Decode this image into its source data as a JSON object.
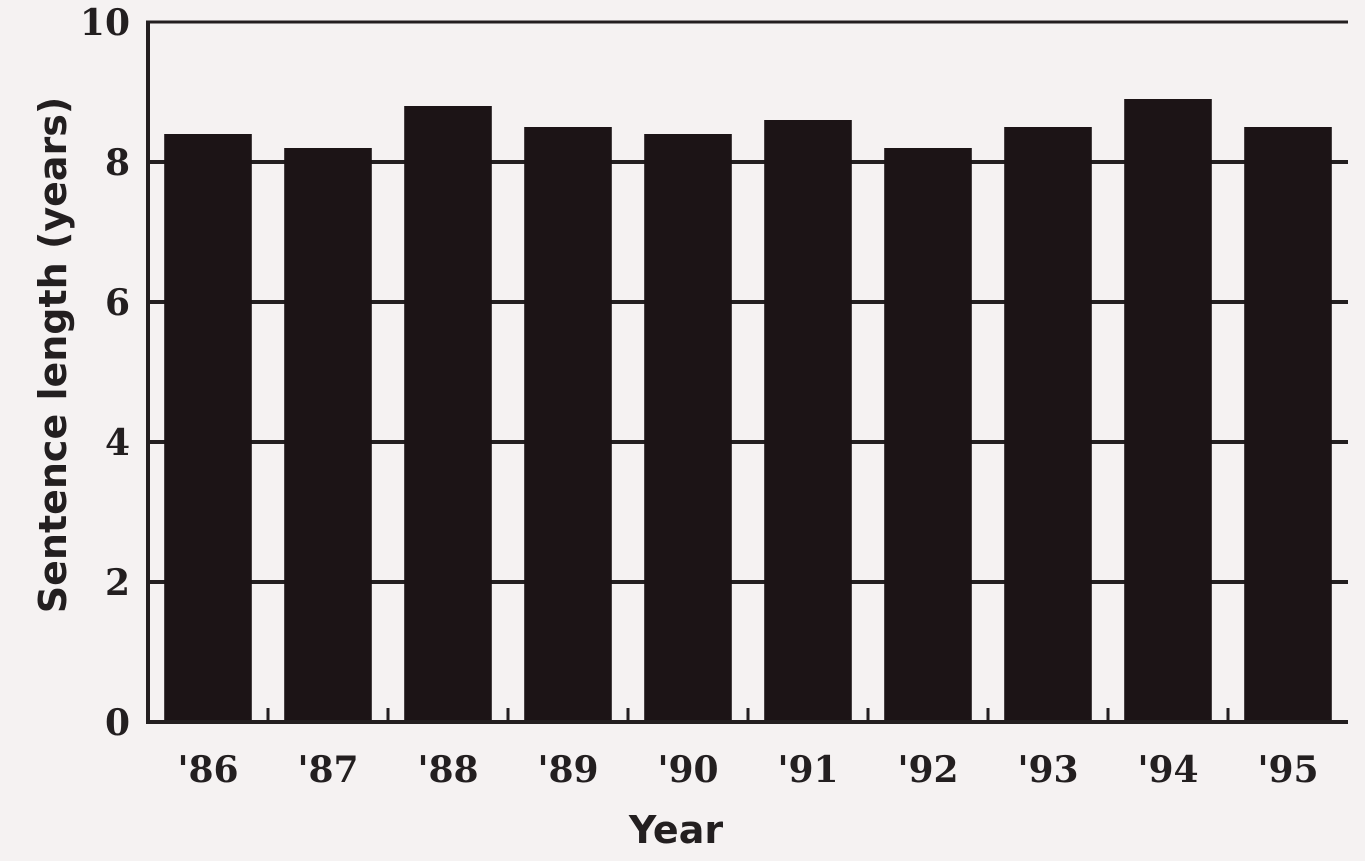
{
  "chart_data": {
    "type": "bar",
    "categories": [
      "'86",
      "'87",
      "'88",
      "'89",
      "'90",
      "'91",
      "'92",
      "'93",
      "'94",
      "'95"
    ],
    "values": [
      8.4,
      8.2,
      8.8,
      8.5,
      8.4,
      8.6,
      8.2,
      8.5,
      8.9,
      8.5
    ],
    "title": "",
    "xlabel": "Year",
    "ylabel": "Sentence length (years)",
    "ylim": [
      0,
      10
    ],
    "yticks": [
      0,
      2,
      4,
      6,
      8,
      10
    ],
    "grid": true,
    "legend": "none",
    "bar_color": "#1c1416",
    "background_color": "#f5f2f2"
  }
}
